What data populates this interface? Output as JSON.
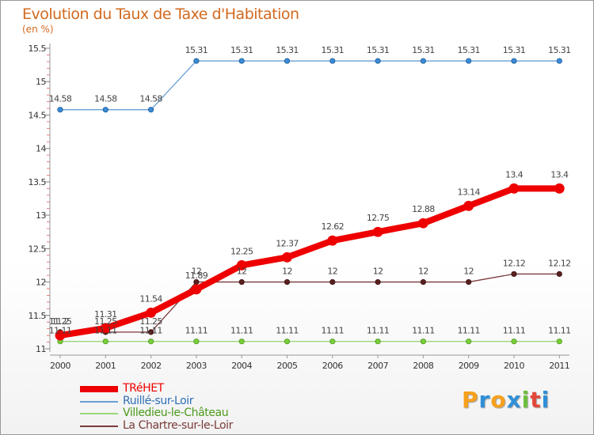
{
  "title": "Evolution du Taux de Taxe d'Habitation",
  "unit_label": "(en %)",
  "logo": {
    "text": "Proxiti",
    "letters": [
      "P",
      "r",
      "o",
      "x",
      "i",
      "t",
      "i"
    ],
    "letter_colors": [
      "#f7a01d",
      "#2f8fd8",
      "#f7a01d",
      "#2f8fd8",
      "#6cbf3a",
      "#e2483a",
      "#2f8fd8"
    ]
  },
  "chart_data": {
    "type": "line",
    "title": "Evolution du Taux de Taxe d'Habitation",
    "ylabel": "(en %)",
    "xlabel": "",
    "categories": [
      "2000",
      "2001",
      "2002",
      "2003",
      "2004",
      "2005",
      "2006",
      "2007",
      "2008",
      "2009",
      "2010",
      "2011"
    ],
    "ylim": [
      11,
      15.5
    ],
    "yticks": [
      11,
      11.5,
      12,
      12.5,
      13,
      13.5,
      14,
      14.5,
      15,
      15.5
    ],
    "ytick_labels": [
      "11",
      "11.5",
      "12",
      "12.5",
      "13",
      "13.5",
      "14",
      "14.5",
      "15",
      "15.5"
    ],
    "grid": false,
    "legend_position": "bottom-left",
    "series": [
      {
        "name": "Ruillé-sur-Loir",
        "color": "#6a9fd4",
        "marker_color": "#3a8ad4",
        "values": [
          14.58,
          14.58,
          14.58,
          15.31,
          15.31,
          15.31,
          15.31,
          15.31,
          15.31,
          15.31,
          15.31,
          15.31
        ],
        "labels": [
          "14.58",
          "14.58",
          "14.58",
          "15.31",
          "15.31",
          "15.31",
          "15.31",
          "15.31",
          "15.31",
          "15.31",
          "15.31",
          "15.31"
        ]
      },
      {
        "name": "Villedieu-le-Château",
        "color": "#9ad87a",
        "marker_color": "#7acc3a",
        "values": [
          11.11,
          11.11,
          11.11,
          11.11,
          11.11,
          11.11,
          11.11,
          11.11,
          11.11,
          11.11,
          11.11,
          11.11
        ],
        "labels": [
          "11.11",
          "11.11",
          "11.11",
          "11.11",
          "11.11",
          "11.11",
          "11.11",
          "11.11",
          "11.11",
          "11.11",
          "11.11",
          "11.11"
        ]
      },
      {
        "name": "La Chartre-sur-le-Loir",
        "color": "#7a3a3a",
        "marker_color": "#5a2020",
        "values": [
          11.25,
          11.25,
          11.25,
          12,
          12,
          12,
          12,
          12,
          12,
          12,
          12.12,
          12.12
        ],
        "labels": [
          "11.25",
          "11.25",
          "11.25",
          "12",
          "12",
          "12",
          "12",
          "12",
          "12",
          "12",
          "12.12",
          "12.12"
        ]
      },
      {
        "name": "TRéHET",
        "color": "#ee0000",
        "marker_color": "#ee0000",
        "values": [
          11.2,
          11.31,
          11.54,
          11.89,
          12.25,
          12.37,
          12.62,
          12.75,
          12.88,
          13.14,
          13.4,
          13.4
        ],
        "labels": [
          "11.2",
          "11.31",
          "11.54",
          "11.89",
          "12.25",
          "12.37",
          "12.62",
          "12.75",
          "12.88",
          "13.14",
          "13.4",
          "13.4"
        ]
      }
    ],
    "legend_order": [
      "TRéHET",
      "Ruillé-sur-Loir",
      "Villedieu-le-Château",
      "La Chartre-sur-le-Loir"
    ]
  }
}
